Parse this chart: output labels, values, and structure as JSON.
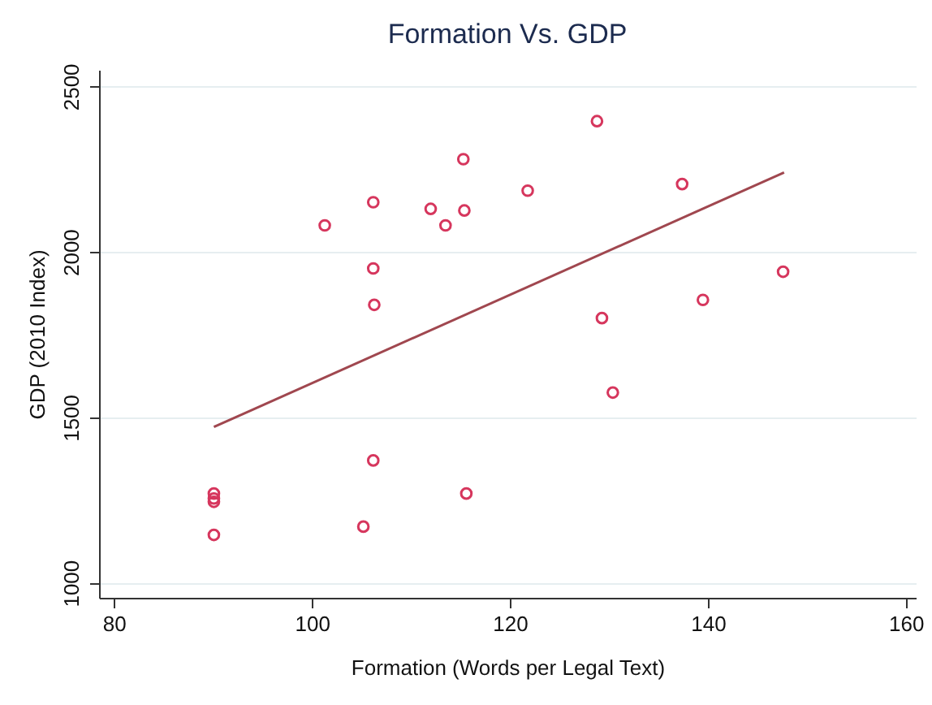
{
  "chart_data": {
    "type": "scatter",
    "title": "Formation Vs. GDP",
    "xlabel": "Formation (Words per Legal Text)",
    "ylabel": "GDP (2010 Index)",
    "xlim": [
      78.5,
      161
    ],
    "xticks": [
      80,
      100,
      120,
      140,
      160
    ],
    "ylim": [
      955,
      2550
    ],
    "yticks": [
      1000,
      1500,
      2000,
      2500
    ],
    "grid": "y",
    "series": [
      {
        "marker": "circle",
        "color": "#d6365d",
        "x": [
          101.3,
          106.2,
          106.2,
          106.3,
          112.0,
          113.5,
          115.3,
          115.4,
          121.8,
          128.8,
          137.4,
          147.6,
          139.5,
          129.3,
          130.4,
          106.2,
          115.6,
          105.2,
          90.1,
          90.1,
          90.1,
          90.1
        ],
        "values": [
          2080,
          2150,
          1950,
          1840,
          2130,
          2080,
          2280,
          2125,
          2185,
          2395,
          2205,
          1940,
          1855,
          1800,
          1575,
          1370,
          1270,
          1170,
          1270,
          1255,
          1245,
          1145
        ]
      },
      {
        "type": "line",
        "color": "#a0474f",
        "x": [
          90.1,
          147.7
        ],
        "values": [
          1471,
          2240
        ]
      }
    ]
  }
}
